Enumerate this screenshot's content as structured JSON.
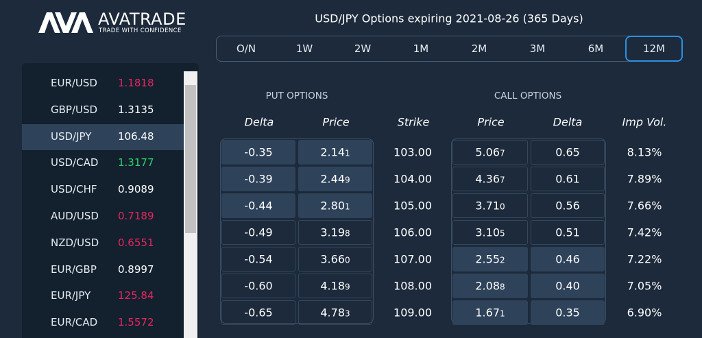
{
  "logo": {
    "brand": "AVATRADE",
    "tagline": "TRADE WITH CONFIDENCE"
  },
  "title": "USD/JPY Options expiring 2021-08-26 (365 Days)",
  "tabs": [
    {
      "label": "O/N"
    },
    {
      "label": "1W"
    },
    {
      "label": "2W"
    },
    {
      "label": "1M"
    },
    {
      "label": "2M"
    },
    {
      "label": "3M"
    },
    {
      "label": "6M"
    },
    {
      "label": "12M",
      "active": true
    }
  ],
  "watchlist": [
    {
      "pair": "EUR/USD",
      "price": "1.1818",
      "color": "#e8265e"
    },
    {
      "pair": "GBP/USD",
      "price": "1.3135",
      "color": "#ffffff"
    },
    {
      "pair": "USD/JPY",
      "price": "106.48",
      "color": "#ffffff",
      "selected": true
    },
    {
      "pair": "USD/CAD",
      "price": "1.3177",
      "color": "#2ed06e"
    },
    {
      "pair": "USD/CHF",
      "price": "0.9089",
      "color": "#ffffff"
    },
    {
      "pair": "AUD/USD",
      "price": "0.7189",
      "color": "#e8265e"
    },
    {
      "pair": "NZD/USD",
      "price": "0.6551",
      "color": "#e8265e"
    },
    {
      "pair": "EUR/GBP",
      "price": "0.8997",
      "color": "#ffffff"
    },
    {
      "pair": "EUR/JPY",
      "price": "125.84",
      "color": "#e8265e"
    },
    {
      "pair": "EUR/CAD",
      "price": "1.5572",
      "color": "#e8265e"
    }
  ],
  "options": {
    "put_header": "PUT OPTIONS",
    "call_header": "CALL OPTIONS",
    "columns": [
      "Delta",
      "Price",
      "Strike",
      "Price",
      "Delta",
      "Imp Vol."
    ],
    "rows": [
      {
        "put_delta": "-0.35",
        "put_price": "2.14",
        "put_pip": "1",
        "strike": "103.00",
        "call_price": "5.06",
        "call_pip": "7",
        "call_delta": "0.65",
        "imp_vol": "8.13%"
      },
      {
        "put_delta": "-0.39",
        "put_price": "2.44",
        "put_pip": "9",
        "strike": "104.00",
        "call_price": "4.36",
        "call_pip": "7",
        "call_delta": "0.61",
        "imp_vol": "7.89%"
      },
      {
        "put_delta": "-0.44",
        "put_price": "2.80",
        "put_pip": "1",
        "strike": "105.00",
        "call_price": "3.71",
        "call_pip": "0",
        "call_delta": "0.56",
        "imp_vol": "7.66%"
      },
      {
        "put_delta": "-0.49",
        "put_price": "3.19",
        "put_pip": "8",
        "strike": "106.00",
        "call_price": "3.10",
        "call_pip": "5",
        "call_delta": "0.51",
        "imp_vol": "7.42%"
      },
      {
        "put_delta": "-0.54",
        "put_price": "3.66",
        "put_pip": "0",
        "strike": "107.00",
        "call_price": "2.55",
        "call_pip": "2",
        "call_delta": "0.46",
        "imp_vol": "7.22%"
      },
      {
        "put_delta": "-0.60",
        "put_price": "4.18",
        "put_pip": "9",
        "strike": "108.00",
        "call_price": "2.08",
        "call_pip": "8",
        "call_delta": "0.40",
        "imp_vol": "7.05%"
      },
      {
        "put_delta": "-0.65",
        "put_price": "4.78",
        "put_pip": "3",
        "strike": "109.00",
        "call_price": "1.67",
        "call_pip": "1",
        "call_delta": "0.35",
        "imp_vol": "6.90%"
      }
    ]
  }
}
